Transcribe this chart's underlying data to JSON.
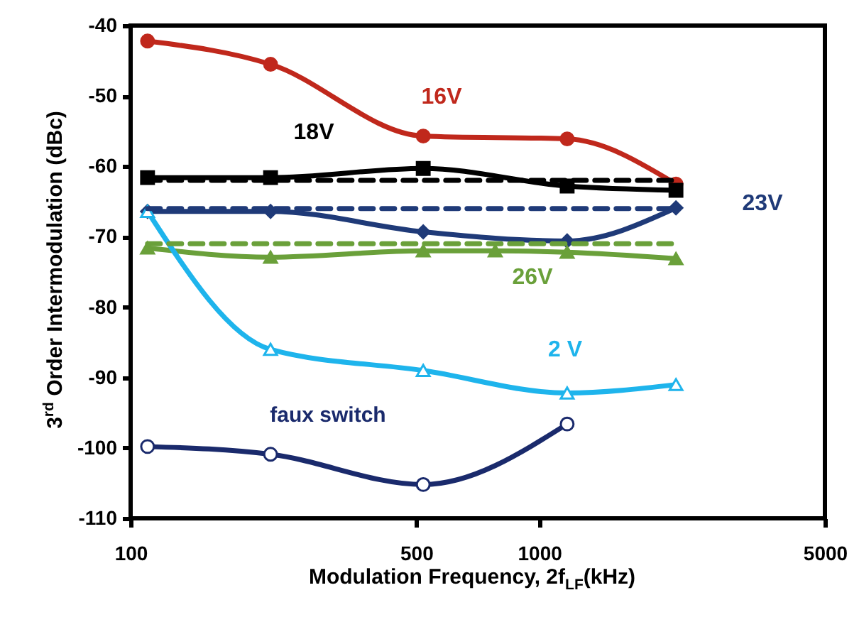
{
  "chart_data": {
    "type": "line",
    "xlabel": "Modulation Frequency, 2f$_{LF}$(kHz)",
    "ylabel": "3$^{rd}$ Order Intermodulation (dBc)",
    "log": "x",
    "xlim": [
      100,
      5000
    ],
    "xticks": [
      100,
      500,
      1000,
      5000
    ],
    "ylim": [
      -110,
      -40
    ],
    "yticks": [
      -110,
      -100,
      -90,
      -80,
      -70,
      -60,
      -50,
      -40
    ],
    "grid": false,
    "series": [
      {
        "name": "16V",
        "color": "#c0281c",
        "marker": "circle",
        "x": [
          110,
          220,
          520,
          1170,
          2160
        ],
        "values": [
          -42.2,
          -45.5,
          -55.7,
          -56.1,
          -62.5
        ]
      },
      {
        "name": "18V",
        "color": "#000000",
        "marker": "square",
        "x": [
          110,
          220,
          520,
          1170,
          2160
        ],
        "values": [
          -61.6,
          -61.6,
          -60.3,
          -62.8,
          -63.4
        ]
      },
      {
        "name": "23V",
        "color": "#1f3a78",
        "marker": "diamond",
        "x": [
          110,
          220,
          520,
          1170,
          2160
        ],
        "values": [
          -66.4,
          -66.4,
          -69.3,
          -70.6,
          -65.9
        ]
      },
      {
        "name": "26V",
        "color": "#6aa03a",
        "marker": "triangle",
        "x": [
          110,
          220,
          520,
          780,
          1170,
          2160
        ],
        "values": [
          -71.6,
          -72.9,
          -72.0,
          -72.0,
          -72.2,
          -73.1
        ]
      },
      {
        "name": "2 V",
        "color": "#1eb4ec",
        "marker": "triangle",
        "x": [
          110,
          220,
          520,
          1170,
          2160
        ],
        "values": [
          -66.4,
          -86.0,
          -89.0,
          -92.2,
          -91.0
        ]
      },
      {
        "name": "faux switch",
        "color": "#1a2a6c",
        "marker": "circle",
        "x": [
          110,
          220,
          520,
          1170
        ],
        "values": [
          -99.8,
          -100.9,
          -105.2,
          -96.6
        ]
      },
      {
        "color": "#000000",
        "marker": "none",
        "line_style": "dashed",
        "x": [
          110,
          2160
        ],
        "values": [
          -62.0,
          -62.0
        ]
      },
      {
        "color": "#1f3a78",
        "marker": "none",
        "line_style": "dashed",
        "x": [
          110,
          2160
        ],
        "values": [
          -66.0,
          -66.0
        ]
      },
      {
        "color": "#6aa03a",
        "marker": "none",
        "line_style": "dashed",
        "x": [
          110,
          2160
        ],
        "values": [
          -71.0,
          -71.0
        ]
      }
    ]
  }
}
